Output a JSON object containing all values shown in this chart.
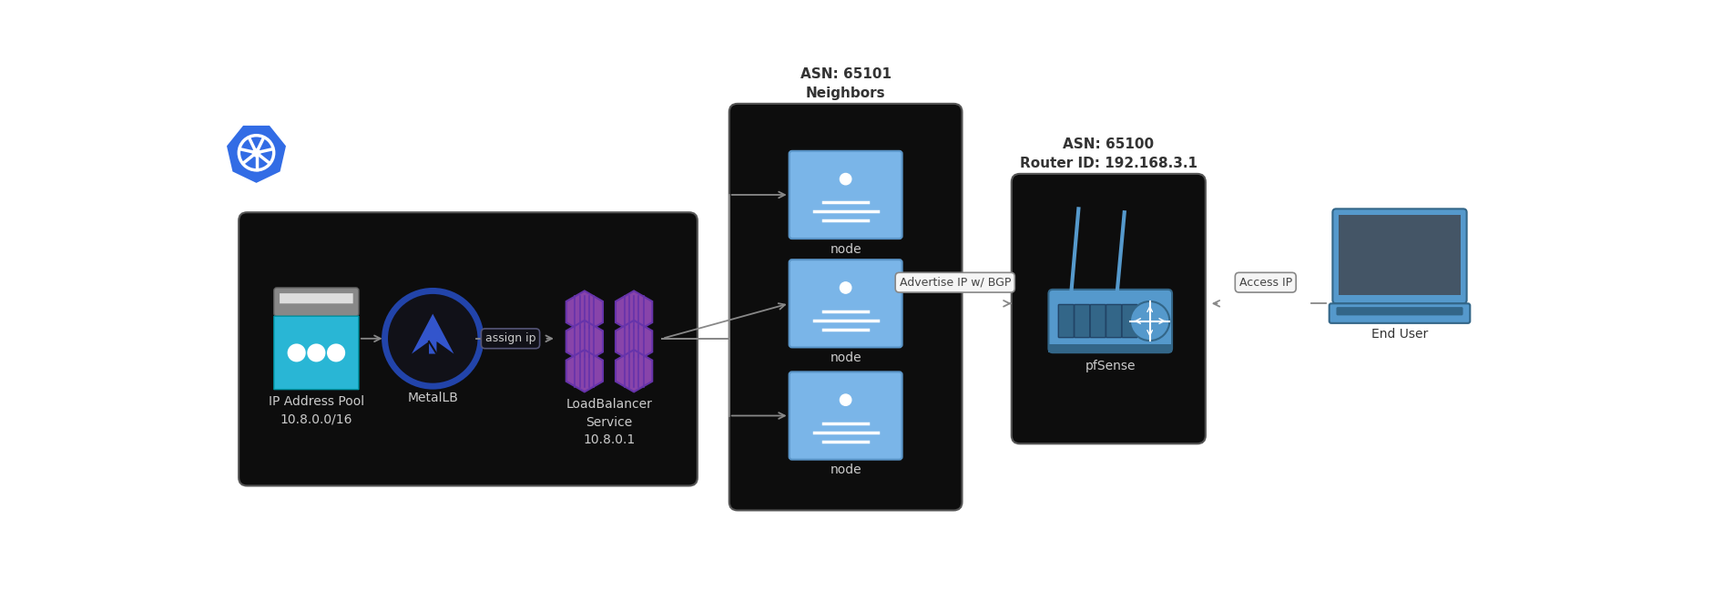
{
  "bg_color": "#ffffff",
  "cluster_bg": "#0d0d0d",
  "nodes_bg": "#0d0d0d",
  "pfsense_bg": "#0d0d0d",
  "text_color_dark": "#333333",
  "text_color_light": "#cccccc",
  "arrow_color": "#888888",
  "node_color": "#7ab5e8",
  "node_border": "#5a95c8",
  "box_border": "#555555",
  "pill_bg": "#f0f0f0",
  "pill_border": "#888888",
  "pill_text": "#444444",
  "k8s_blue": "#326ce5",
  "metallb_ring": "#2244aa",
  "metallb_arrow": "#3355bb",
  "lb_hex_color": "#8844aa",
  "lb_hex_dark": "#6633aa",
  "router_body": "#5599cc",
  "router_dark": "#336688",
  "laptop_body": "#5599cc",
  "laptop_dark": "#336688",
  "asn_nodes_label": "ASN: 65101\nNeighbors",
  "asn_pfsense_label": "ASN: 65100\nRouter ID: 192.168.3.1",
  "ip_pool_label": "IP Address Pool\n10.8.0.0/16",
  "metallb_label": "MetalLB",
  "lb_service_label": "LoadBalancer\nService\n10.8.0.1",
  "node_label": "node",
  "pfsense_label": "pfSense",
  "enduser_label": "End User",
  "assign_ip_label": "assign ip",
  "advertise_label": "Advertise IP w/ BGP",
  "access_label": "Access IP"
}
